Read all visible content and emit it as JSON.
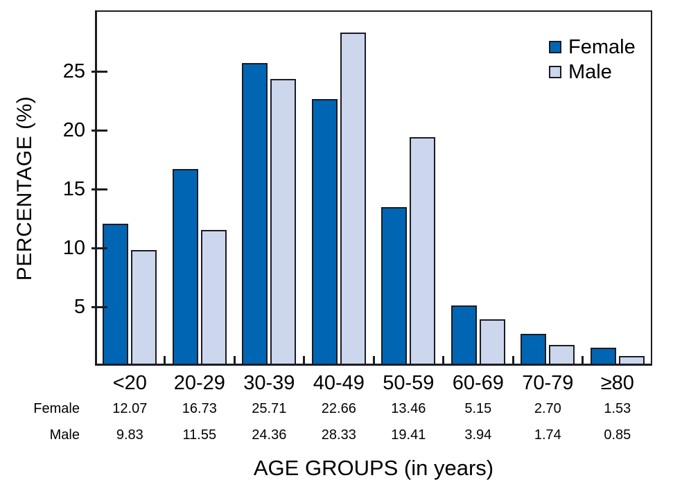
{
  "chart_data": {
    "type": "bar",
    "title": "",
    "categories": [
      "<20",
      "20-29",
      "30-39",
      "40-49",
      "50-59",
      "60-69",
      "70-79",
      "≥80"
    ],
    "series": [
      {
        "name": "Female",
        "color": "#0066b3",
        "values": [
          12.07,
          16.73,
          25.71,
          22.66,
          13.46,
          5.15,
          2.7,
          1.53
        ]
      },
      {
        "name": "Male",
        "color": "#ccd6ec",
        "values": [
          9.83,
          11.55,
          24.36,
          28.33,
          19.41,
          3.94,
          1.74,
          0.85
        ]
      }
    ],
    "xlabel": "AGE GROUPS (in years)",
    "ylabel": "PERCENTAGE (%)",
    "yticks": [
      5,
      10,
      15,
      20,
      25
    ],
    "ylim": [
      0,
      30.2
    ],
    "grid": false,
    "legend_position": "top-right",
    "bar_border_color": "#1b1b24",
    "data_table": {
      "row_labels": [
        "Female",
        "Male"
      ],
      "rows": [
        [
          "12.07",
          "16.73",
          "25.71",
          "22.66",
          "13.46",
          "5.15",
          "2.70",
          "1.53"
        ],
        [
          "9.83",
          "11.55",
          "24.36",
          "28.33",
          "19.41",
          "3.94",
          "1.74",
          "0.85"
        ]
      ]
    }
  }
}
